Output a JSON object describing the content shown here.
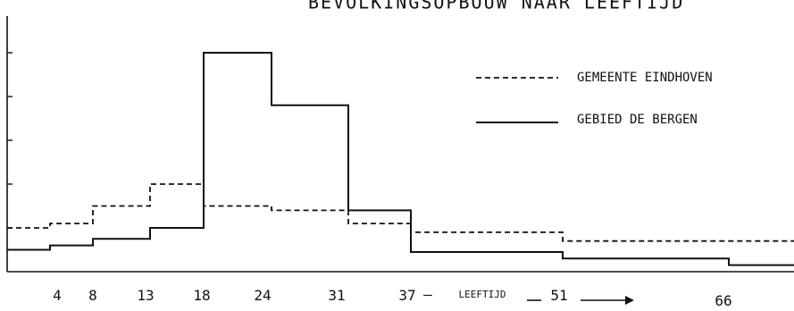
{
  "chart_data": {
    "type": "line",
    "step": true,
    "title": "BEVOLKINGSOPBOUW NAAR LEEFTIJD",
    "xlabel": "LEEFTIJD",
    "ylabel": "",
    "x_edges": [
      0,
      4,
      8,
      13,
      18,
      24,
      31,
      37,
      51,
      66,
      72
    ],
    "tick_labels": [
      "4",
      "8",
      "13",
      "18",
      "24",
      "31",
      "37",
      "51",
      "66"
    ],
    "xlim": [
      0,
      72
    ],
    "ylim": [
      0,
      10
    ],
    "y_ticks": [
      0,
      1,
      2,
      3,
      4,
      5
    ],
    "grid": false,
    "legend_position": "top-right",
    "series": [
      {
        "name": "GEMEENTE EINDHOVEN",
        "style": "dashed",
        "values": [
          1.0,
          1.1,
          1.5,
          2.0,
          1.5,
          1.4,
          1.1,
          0.9,
          0.7,
          0.7
        ]
      },
      {
        "name": "GEBIED DE BERGEN",
        "style": "solid",
        "values": [
          0.5,
          0.6,
          0.75,
          1.0,
          5.0,
          3.8,
          1.4,
          0.45,
          0.3,
          0.15
        ]
      }
    ]
  }
}
